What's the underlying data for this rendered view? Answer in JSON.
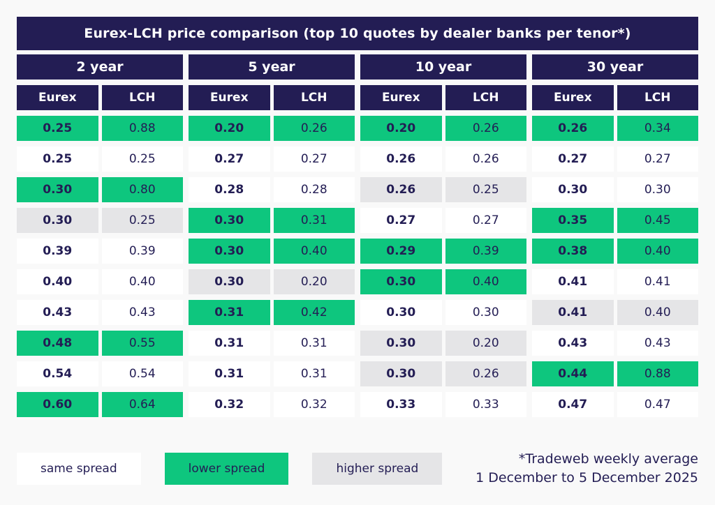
{
  "title": "Eurex-LCH price comparison (top 10 quotes by dealer banks per tenor*)",
  "chart_data": {
    "type": "table",
    "title": "Eurex-LCH price comparison (top 10 quotes by dealer banks per tenor*)",
    "column_headers_per_tenor": [
      "Eurex",
      "LCH"
    ],
    "cell_status_meaning": {
      "same": "same spread (white)",
      "lower": "lower spread (green)",
      "higher": "higher spread (grey)"
    },
    "groups": [
      {
        "tenor": "2 year",
        "rows": [
          {
            "eurex": "0.25",
            "lch": "0.88",
            "status": "lower"
          },
          {
            "eurex": "0.25",
            "lch": "0.25",
            "status": "same"
          },
          {
            "eurex": "0.30",
            "lch": "0.80",
            "status": "lower"
          },
          {
            "eurex": "0.30",
            "lch": "0.25",
            "status": "higher"
          },
          {
            "eurex": "0.39",
            "lch": "0.39",
            "status": "same"
          },
          {
            "eurex": "0.40",
            "lch": "0.40",
            "status": "same"
          },
          {
            "eurex": "0.43",
            "lch": "0.43",
            "status": "same"
          },
          {
            "eurex": "0.48",
            "lch": "0.55",
            "status": "lower"
          },
          {
            "eurex": "0.54",
            "lch": "0.54",
            "status": "same"
          },
          {
            "eurex": "0.60",
            "lch": "0.64",
            "status": "lower"
          }
        ]
      },
      {
        "tenor": "5 year",
        "rows": [
          {
            "eurex": "0.20",
            "lch": "0.26",
            "status": "lower"
          },
          {
            "eurex": "0.27",
            "lch": "0.27",
            "status": "same"
          },
          {
            "eurex": "0.28",
            "lch": "0.28",
            "status": "same"
          },
          {
            "eurex": "0.30",
            "lch": "0.31",
            "status": "lower"
          },
          {
            "eurex": "0.30",
            "lch": "0.40",
            "status": "lower"
          },
          {
            "eurex": "0.30",
            "lch": "0.20",
            "status": "higher"
          },
          {
            "eurex": "0.31",
            "lch": "0.42",
            "status": "lower"
          },
          {
            "eurex": "0.31",
            "lch": "0.31",
            "status": "same"
          },
          {
            "eurex": "0.31",
            "lch": "0.31",
            "status": "same"
          },
          {
            "eurex": "0.32",
            "lch": "0.32",
            "status": "same"
          }
        ]
      },
      {
        "tenor": "10 year",
        "rows": [
          {
            "eurex": "0.20",
            "lch": "0.26",
            "status": "lower"
          },
          {
            "eurex": "0.26",
            "lch": "0.26",
            "status": "same"
          },
          {
            "eurex": "0.26",
            "lch": "0.25",
            "status": "higher"
          },
          {
            "eurex": "0.27",
            "lch": "0.27",
            "status": "same"
          },
          {
            "eurex": "0.29",
            "lch": "0.39",
            "status": "lower"
          },
          {
            "eurex": "0.30",
            "lch": "0.40",
            "status": "lower"
          },
          {
            "eurex": "0.30",
            "lch": "0.30",
            "status": "same"
          },
          {
            "eurex": "0.30",
            "lch": "0.20",
            "status": "higher"
          },
          {
            "eurex": "0.30",
            "lch": "0.26",
            "status": "higher"
          },
          {
            "eurex": "0.33",
            "lch": "0.33",
            "status": "same"
          }
        ]
      },
      {
        "tenor": "30 year",
        "rows": [
          {
            "eurex": "0.26",
            "lch": "0.34",
            "status": "lower"
          },
          {
            "eurex": "0.27",
            "lch": "0.27",
            "status": "same"
          },
          {
            "eurex": "0.30",
            "lch": "0.30",
            "status": "same"
          },
          {
            "eurex": "0.35",
            "lch": "0.45",
            "status": "lower"
          },
          {
            "eurex": "0.38",
            "lch": "0.40",
            "status": "lower"
          },
          {
            "eurex": "0.41",
            "lch": "0.41",
            "status": "same"
          },
          {
            "eurex": "0.41",
            "lch": "0.40",
            "status": "higher"
          },
          {
            "eurex": "0.43",
            "lch": "0.43",
            "status": "same"
          },
          {
            "eurex": "0.44",
            "lch": "0.88",
            "status": "lower"
          },
          {
            "eurex": "0.47",
            "lch": "0.47",
            "status": "same"
          }
        ]
      }
    ]
  },
  "legend": {
    "items": [
      {
        "label": "same spread",
        "status": "same"
      },
      {
        "label": "lower spread",
        "status": "lower"
      },
      {
        "label": "higher spread",
        "status": "higher"
      }
    ]
  },
  "footnote": {
    "line1": "*Tradeweb weekly average",
    "line2": "1 December to 5 December 2025"
  },
  "colors": {
    "navy": "#231d54",
    "green": "#0ec67e",
    "gray": "#e5e5e7",
    "cell_white": "#ffffff",
    "background": "#f9f9f9"
  }
}
